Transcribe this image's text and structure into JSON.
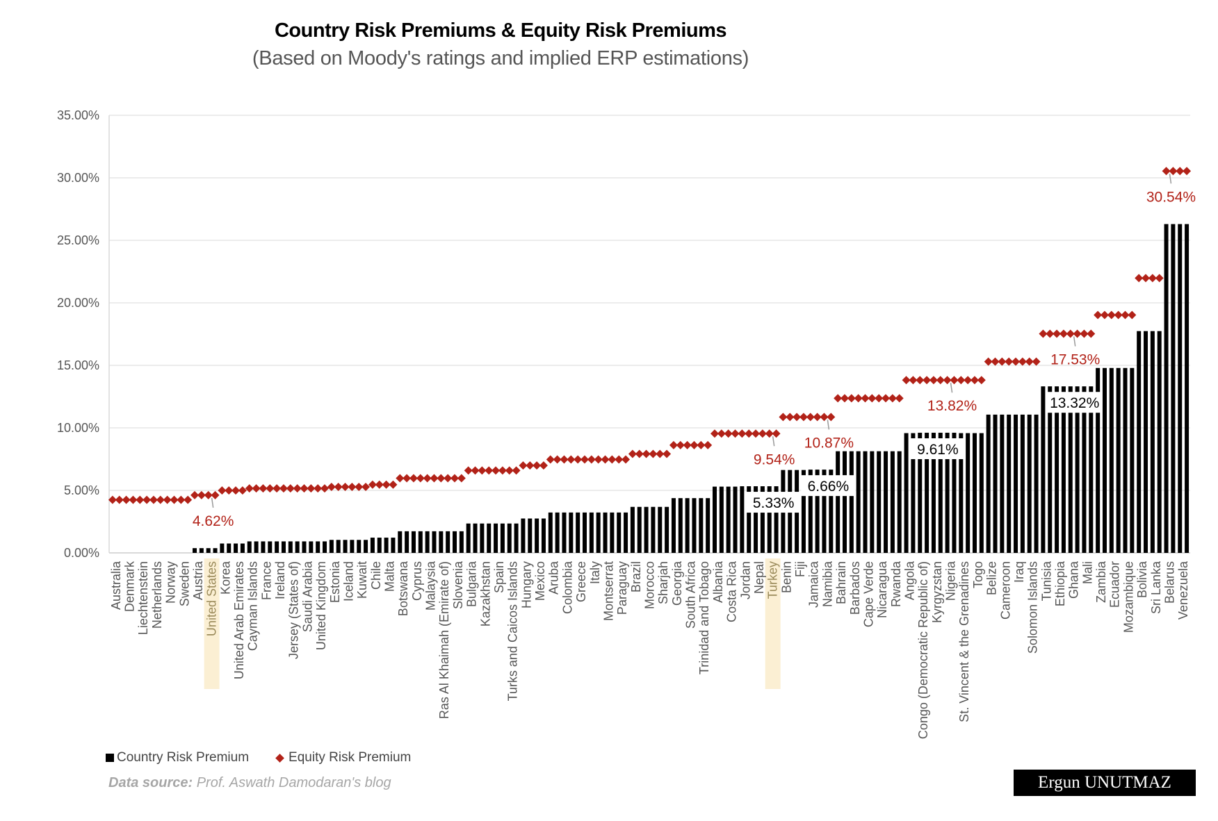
{
  "header": {
    "title": "Country Risk Premiums & Equity Risk Premiums",
    "subtitle": "(Based on Moody's ratings and implied ERP estimations)"
  },
  "legend": {
    "crp_label": "Country Risk Premium",
    "erp_label": "Equity Risk Premium"
  },
  "footer": {
    "source_label": "Data source:",
    "source_text": " Prof. Aswath Damodaran's blog",
    "signature": "Ergun UNUTMAZ"
  },
  "colors": {
    "crp": "#000000",
    "erp": "#b22218",
    "highlight": "#fbefd3",
    "highlight_text": "#9a8a5a",
    "grid": "#d9d9d9",
    "axis_text": "#555555"
  },
  "chart_data": {
    "type": "bar",
    "title": "Country Risk Premiums & Equity Risk Premiums",
    "subtitle": "(Based on Moody's ratings and implied ERP estimations)",
    "xlabel": "",
    "ylabel": "",
    "ylim": [
      0,
      35
    ],
    "yticks": [
      "0.00%",
      "5.00%",
      "10.00%",
      "15.00%",
      "20.00%",
      "25.00%",
      "30.00%",
      "35.00%"
    ],
    "grid": true,
    "legend_position": "bottom-left",
    "highlighted_categories": [
      "United States",
      "Turkey"
    ],
    "categories": [
      "Australia",
      "Denmark",
      "Liechtenstein",
      "Netherlands",
      "Norway",
      "Sweden",
      "Austria",
      "United States",
      "Korea",
      "United Arab Emirates",
      "Cayman Islands",
      "France",
      "Ireland",
      "Jersey (States of)",
      "Saudi Arabia",
      "United Kingdom",
      "Estonia",
      "Iceland",
      "Kuwait",
      "Chile",
      "Malta",
      "Botswana",
      "Cyprus",
      "Malaysia",
      "Ras Al Khaimah (Emirate of)",
      "Slovenia",
      "Bulgaria",
      "Kazakhstan",
      "Spain",
      "Turks and Caicos Islands",
      "Hungary",
      "Mexico",
      "Aruba",
      "Colombia",
      "Greece",
      "Italy",
      "Montserrat",
      "Paraguay",
      "Brazil",
      "Morocco",
      "Sharjah",
      "Georgia",
      "South Africa",
      "Trinidad and Tobago",
      "Albania",
      "Costa Rica",
      "Jordan",
      "Nepal",
      "Turkey",
      "Benin",
      "Fiji",
      "Jamaica",
      "Namibia",
      "Bahrain",
      "Barbados",
      "Cape Verde",
      "Nicaragua",
      "Rwanda",
      "Angola",
      "Congo (Democratic Republic of)",
      "Kyrgyzstan",
      "Nigeria",
      "St. Vincent & the Grenadines",
      "Togo",
      "Belize",
      "Cameroon",
      "Iraq",
      "Solomon Islands",
      "Tunisia",
      "Ethiopia",
      "Ghana",
      "Mali",
      "Zambia",
      "Ecuador",
      "Mozambique",
      "Bolivia",
      "Sri Lanka",
      "Belarus",
      "Venezuela"
    ],
    "series": [
      {
        "name": "Country Risk Premium",
        "type": "bar",
        "values": [
          0,
          0,
          0,
          0,
          0,
          0,
          0.38,
          0.38,
          0.75,
          0.75,
          0.92,
          0.92,
          0.92,
          0.92,
          0.92,
          0.92,
          1.04,
          1.04,
          1.04,
          1.22,
          1.22,
          1.73,
          1.73,
          1.73,
          1.73,
          1.73,
          2.35,
          2.35,
          2.35,
          2.35,
          2.75,
          2.75,
          3.23,
          3.23,
          3.23,
          3.23,
          3.23,
          3.23,
          3.68,
          3.68,
          3.68,
          4.38,
          4.38,
          4.38,
          5.3,
          5.3,
          5.33,
          5.33,
          5.33,
          6.63,
          6.63,
          6.66,
          6.66,
          8.13,
          8.13,
          8.13,
          8.13,
          8.13,
          9.58,
          9.61,
          9.61,
          9.61,
          9.58,
          9.58,
          11.06,
          11.06,
          11.06,
          11.06,
          13.32,
          13.32,
          13.32,
          13.32,
          14.79,
          14.79,
          14.79,
          17.74,
          17.74,
          26.3,
          26.3
        ]
      },
      {
        "name": "Equity Risk Premium",
        "type": "scatter",
        "marker": "diamond",
        "values": [
          4.24,
          4.24,
          4.24,
          4.24,
          4.24,
          4.24,
          4.62,
          4.62,
          4.99,
          4.99,
          5.16,
          5.16,
          5.16,
          5.16,
          5.16,
          5.16,
          5.28,
          5.28,
          5.28,
          5.46,
          5.46,
          5.97,
          5.97,
          5.97,
          5.97,
          5.97,
          6.59,
          6.59,
          6.59,
          6.59,
          6.99,
          6.99,
          7.47,
          7.47,
          7.47,
          7.47,
          7.47,
          7.47,
          7.92,
          7.92,
          7.92,
          8.62,
          8.62,
          8.62,
          9.54,
          9.54,
          9.54,
          9.54,
          9.54,
          10.87,
          10.87,
          10.87,
          10.87,
          12.37,
          12.37,
          12.37,
          12.37,
          12.37,
          13.82,
          13.82,
          13.82,
          13.82,
          13.82,
          13.82,
          15.3,
          15.3,
          15.3,
          15.3,
          17.53,
          17.53,
          17.53,
          17.53,
          19.03,
          19.03,
          19.03,
          21.98,
          21.98,
          30.54,
          30.54
        ]
      }
    ],
    "annotations": [
      {
        "series": "Equity Risk Premium",
        "category": "United States",
        "text": "4.62%"
      },
      {
        "series": "Equity Risk Premium",
        "category": "Turkey",
        "text": "9.54%"
      },
      {
        "series": "Equity Risk Premium",
        "category": "Namibia",
        "text": "10.87%"
      },
      {
        "series": "Equity Risk Premium",
        "category": "Nigeria",
        "text": "13.82%"
      },
      {
        "series": "Equity Risk Premium",
        "category": "Ghana",
        "text": "17.53%"
      },
      {
        "series": "Equity Risk Premium",
        "category": "Belarus",
        "text": "30.54%"
      },
      {
        "series": "Country Risk Premium",
        "category": "Turkey",
        "text": "5.33%"
      },
      {
        "series": "Country Risk Premium",
        "category": "Namibia",
        "text": "6.66%"
      },
      {
        "series": "Country Risk Premium",
        "category": "Kyrgyzstan",
        "text": "9.61%"
      },
      {
        "series": "Country Risk Premium",
        "category": "Ghana",
        "text": "13.32%"
      }
    ]
  }
}
